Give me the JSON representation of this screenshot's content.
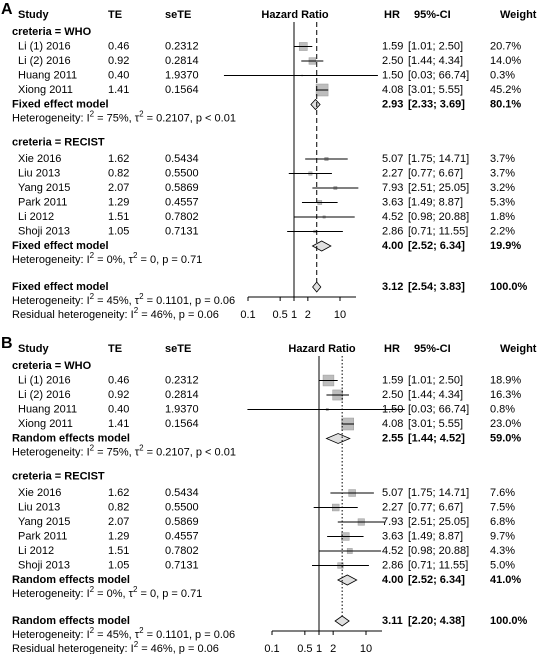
{
  "chart_data": [
    {
      "type": "forest",
      "panel_label": "A",
      "columns": {
        "study": "Study",
        "te": "TE",
        "se": "seTE",
        "plot": "Hazard Ratio",
        "hr": "HR",
        "ci": "95%-CI",
        "weight": "Weight"
      },
      "groups": [
        {
          "title": "creteria = WHO",
          "studies": [
            {
              "name": "Li (1) 2016",
              "te": "0.46",
              "se": "0.2312",
              "hr": 1.59,
              "lower": 1.01,
              "upper": 2.5,
              "weight": 20.7,
              "ci_label": "[1.01; 2.50]",
              "weight_label": "20.7%"
            },
            {
              "name": "Li (2) 2016",
              "te": "0.92",
              "se": "0.2814",
              "hr": 2.5,
              "hr_label": "2.50",
              "lower": 1.44,
              "upper": 4.34,
              "weight": 14.0,
              "ci_label": "[1.44; 4.34]",
              "weight_label": "14.0%"
            },
            {
              "name": "Huang 2011",
              "te": "0.40",
              "se": "1.9370",
              "hr": 1.5,
              "hr_label": "1.50",
              "lower": 0.03,
              "upper": 66.74,
              "weight": 0.3,
              "ci_label": "[0.03; 66.74]",
              "weight_label": "0.3%"
            },
            {
              "name": "Xiong 2011",
              "te": "1.41",
              "se": "0.1564",
              "hr": 4.08,
              "lower": 3.01,
              "upper": 5.55,
              "weight": 45.2,
              "ci_label": "[3.01; 5.55]",
              "weight_label": "45.2%"
            }
          ],
          "summary": {
            "name": "Fixed effect model",
            "hr": 2.93,
            "lower": 2.33,
            "upper": 3.69,
            "weight": 80.1,
            "ci_label": "[2.33; 3.69]",
            "weight_label": "80.1%"
          },
          "heterogeneity": [
            "Heterogeneity: I",
            "2",
            " = 75%, τ",
            "2",
            " = 0.2107, p < 0.01"
          ]
        },
        {
          "title": "creteria = RECIST",
          "studies": [
            {
              "name": "Xie 2016",
              "te": "1.62",
              "se": "0.5434",
              "hr": 5.07,
              "lower": 1.75,
              "upper": 14.71,
              "weight": 3.7,
              "ci_label": "[1.75; 14.71]",
              "weight_label": "3.7%"
            },
            {
              "name": "Liu 2013",
              "te": "0.82",
              "se": "0.5500",
              "hr": 2.27,
              "lower": 0.77,
              "upper": 6.67,
              "weight": 3.7,
              "ci_label": "[0.77; 6.67]",
              "weight_label": "3.7%"
            },
            {
              "name": "Yang 2015",
              "te": "2.07",
              "se": "0.5869",
              "hr": 7.93,
              "lower": 2.51,
              "upper": 25.05,
              "weight": 3.2,
              "ci_label": "[2.51; 25.05]",
              "weight_label": "3.2%"
            },
            {
              "name": "Park 2011",
              "te": "1.29",
              "se": "0.4557",
              "hr": 3.63,
              "lower": 1.49,
              "upper": 8.87,
              "weight": 5.3,
              "ci_label": "[1.49; 8.87]",
              "weight_label": "5.3%"
            },
            {
              "name": "Li 2012",
              "te": "1.51",
              "se": "0.7802",
              "hr": 4.52,
              "lower": 0.98,
              "upper": 20.88,
              "weight": 1.8,
              "ci_label": "[0.98; 20.88]",
              "weight_label": "1.8%"
            },
            {
              "name": "Shoji 2013",
              "te": "1.05",
              "se": "0.7131",
              "hr": 2.86,
              "lower": 0.71,
              "upper": 11.55,
              "weight": 2.2,
              "ci_label": "[0.71; 11.55]",
              "weight_label": "2.2%"
            }
          ],
          "summary": {
            "name": "Fixed effect model",
            "hr": 4.0,
            "hr_label": "4.00",
            "lower": 2.52,
            "upper": 6.34,
            "weight": 19.9,
            "ci_label": "[2.52; 6.34]",
            "weight_label": "19.9%"
          },
          "heterogeneity": [
            "Heterogeneity: I",
            "2",
            " = 0%, τ",
            "2",
            " = 0, p = 0.71"
          ]
        }
      ],
      "overall": {
        "name": "Fixed effect model",
        "hr": 3.12,
        "lower": 2.54,
        "upper": 3.83,
        "weight": 100.0,
        "ci_label": "[2.54; 3.83]",
        "weight_label": "100.0%"
      },
      "overall_heterogeneity": [
        "Heterogeneity: I",
        "2",
        " = 45%, τ",
        "2",
        " = 0.1101, p = 0.06"
      ],
      "residual_heterogeneity": [
        "Residual heterogeneity: I",
        "2",
        " = 46%, p = 0.06"
      ],
      "log_x": true,
      "xlim": [
        0.1,
        10
      ],
      "xticks": [
        0.1,
        0.5,
        1,
        2,
        10
      ],
      "ref_line_style": "dashed"
    },
    {
      "type": "forest",
      "panel_label": "B",
      "columns": {
        "study": "Study",
        "te": "TE",
        "se": "seTE",
        "plot": "Hazard Ratio",
        "hr": "HR",
        "ci": "95%-CI",
        "weight": "Weight"
      },
      "groups": [
        {
          "title": "creteria = WHO",
          "studies": [
            {
              "name": "Li (1) 2016",
              "te": "0.46",
              "se": "0.2312",
              "hr": 1.59,
              "lower": 1.01,
              "upper": 2.5,
              "weight": 18.9,
              "ci_label": "[1.01; 2.50]",
              "weight_label": "18.9%"
            },
            {
              "name": "Li (2) 2016",
              "te": "0.92",
              "se": "0.2814",
              "hr": 2.5,
              "hr_label": "2.50",
              "lower": 1.44,
              "upper": 4.34,
              "weight": 16.3,
              "ci_label": "[1.44; 4.34]",
              "weight_label": "16.3%"
            },
            {
              "name": "Huang 2011",
              "te": "0.40",
              "se": "1.9370",
              "hr": 1.5,
              "hr_label": "1.50",
              "lower": 0.03,
              "upper": 66.74,
              "weight": 0.8,
              "ci_label": "[0.03; 66.74]",
              "weight_label": "0.8%"
            },
            {
              "name": "Xiong 2011",
              "te": "1.41",
              "se": "0.1564",
              "hr": 4.08,
              "lower": 3.01,
              "upper": 5.55,
              "weight": 23.0,
              "ci_label": "[3.01; 5.55]",
              "weight_label": "23.0%"
            }
          ],
          "summary": {
            "name": "Random effects model",
            "hr": 2.55,
            "lower": 1.44,
            "upper": 4.52,
            "weight": 59.0,
            "ci_label": "[1.44; 4.52]",
            "weight_label": "59.0%"
          },
          "heterogeneity": [
            "Heterogeneity: I",
            "2",
            " = 75%, τ",
            "2",
            " = 0.2107, p < 0.01"
          ]
        },
        {
          "title": "creteria = RECIST",
          "studies": [
            {
              "name": "Xie 2016",
              "te": "1.62",
              "se": "0.5434",
              "hr": 5.07,
              "lower": 1.75,
              "upper": 14.71,
              "weight": 7.6,
              "ci_label": "[1.75; 14.71]",
              "weight_label": "7.6%"
            },
            {
              "name": "Liu 2013",
              "te": "0.82",
              "se": "0.5500",
              "hr": 2.27,
              "lower": 0.77,
              "upper": 6.67,
              "weight": 7.5,
              "ci_label": "[0.77; 6.67]",
              "weight_label": "7.5%"
            },
            {
              "name": "Yang 2015",
              "te": "2.07",
              "se": "0.5869",
              "hr": 7.93,
              "lower": 2.51,
              "upper": 25.05,
              "weight": 6.8,
              "ci_label": "[2.51; 25.05]",
              "weight_label": "6.8%"
            },
            {
              "name": "Park 2011",
              "te": "1.29",
              "se": "0.4557",
              "hr": 3.63,
              "lower": 1.49,
              "upper": 8.87,
              "weight": 9.7,
              "ci_label": "[1.49; 8.87]",
              "weight_label": "9.7%"
            },
            {
              "name": "Li 2012",
              "te": "1.51",
              "se": "0.7802",
              "hr": 4.52,
              "lower": 0.98,
              "upper": 20.88,
              "weight": 4.3,
              "ci_label": "[0.98; 20.88]",
              "weight_label": "4.3%"
            },
            {
              "name": "Shoji 2013",
              "te": "1.05",
              "se": "0.7131",
              "hr": 2.86,
              "lower": 0.71,
              "upper": 11.55,
              "weight": 5.0,
              "ci_label": "[0.71; 11.55]",
              "weight_label": "5.0%"
            }
          ],
          "summary": {
            "name": "Random effects model",
            "hr": 4.0,
            "hr_label": "4.00",
            "lower": 2.52,
            "upper": 6.34,
            "weight": 41.0,
            "ci_label": "[2.52; 6.34]",
            "weight_label": "41.0%"
          },
          "heterogeneity": [
            "Heterogeneity: I",
            "2",
            " = 0%, τ",
            "2",
            " = 0, p = 0.71"
          ]
        }
      ],
      "overall": {
        "name": "Random effects model",
        "hr": 3.11,
        "lower": 2.2,
        "upper": 4.38,
        "weight": 100.0,
        "ci_label": "[2.20; 4.38]",
        "weight_label": "100.0%"
      },
      "overall_heterogeneity": [
        "Heterogeneity: I",
        "2",
        " = 45%, τ",
        "2",
        " = 0.1101, p = 0.06"
      ],
      "residual_heterogeneity": [
        "Residual heterogeneity: I",
        "2",
        " = 46%, p = 0.06"
      ],
      "log_x": true,
      "xlim": [
        0.1,
        10
      ],
      "xticks": [
        0.1,
        0.5,
        1,
        2,
        10
      ],
      "ref_line_style": "dotted"
    }
  ]
}
